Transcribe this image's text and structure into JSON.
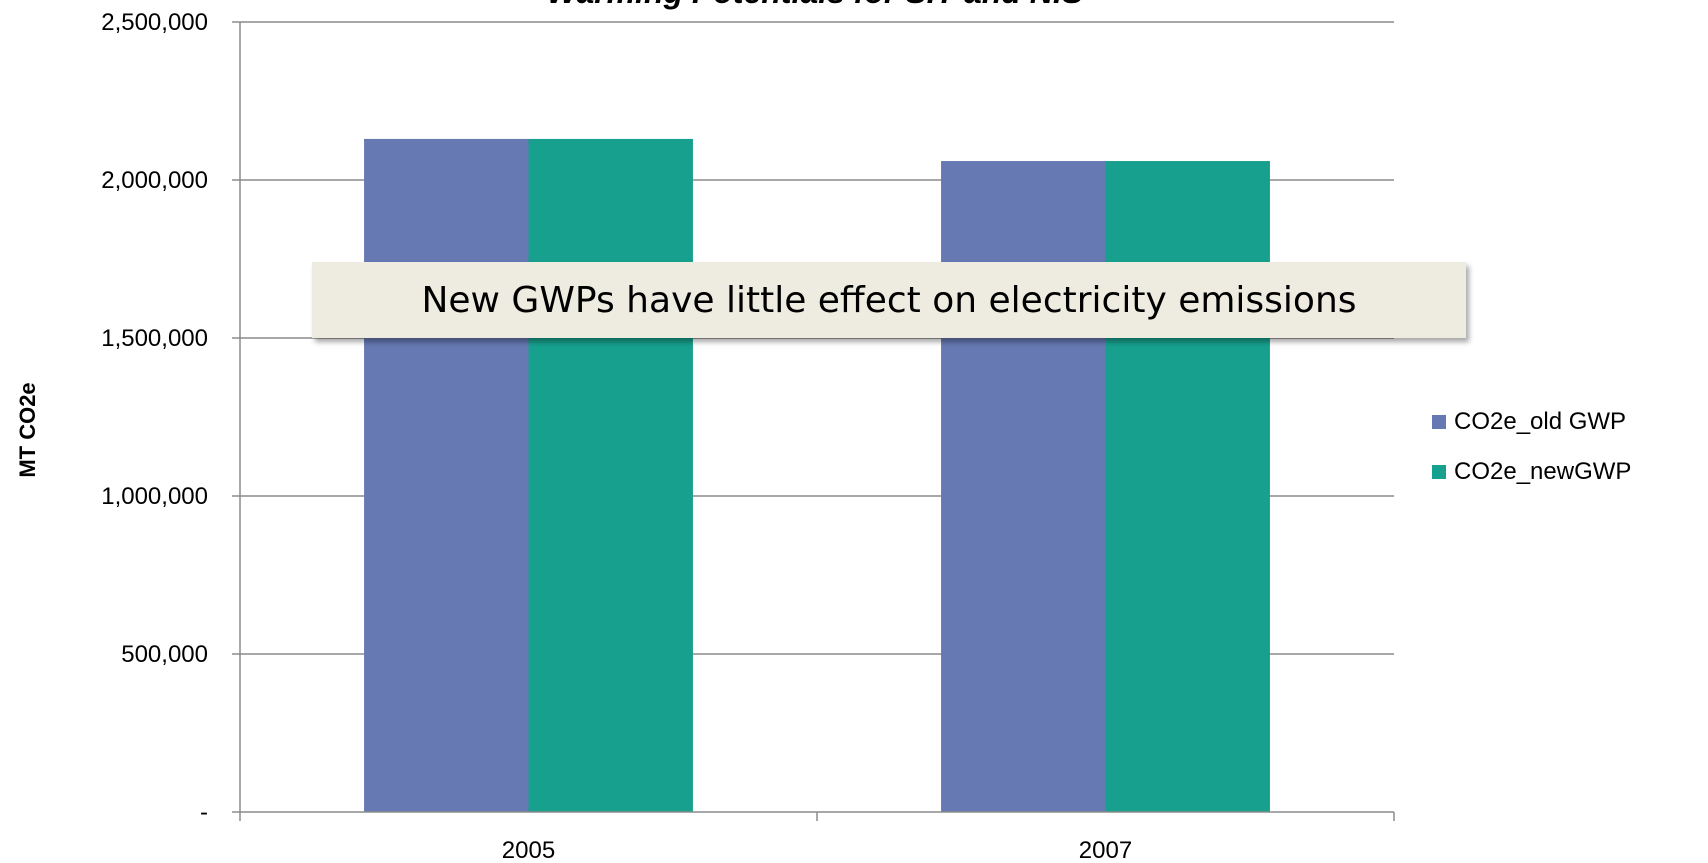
{
  "chart_data": {
    "type": "bar",
    "title": "Warming Potentials for SIT and NIS",
    "xlabel": "",
    "ylabel": "MT CO2e",
    "categories": [
      "2005",
      "2007"
    ],
    "series": [
      {
        "name": "CO2e_old GWP",
        "color": "#6779b3",
        "values": [
          2130000,
          2060000
        ]
      },
      {
        "name": "CO2e_newGWP",
        "color": "#17a08d",
        "values": [
          2130000,
          2060000
        ]
      }
    ],
    "ylim": [
      0,
      2500000
    ],
    "yticks": [
      0,
      500000,
      1000000,
      1500000,
      2000000,
      2500000
    ],
    "ytick_labels": [
      "-",
      "500,000",
      "1,000,000",
      "1,500,000",
      "2,000,000",
      "2,500,000"
    ],
    "grid": true,
    "legend_position": "right",
    "annotation": "New GWPs have little effect on electricity emissions"
  }
}
